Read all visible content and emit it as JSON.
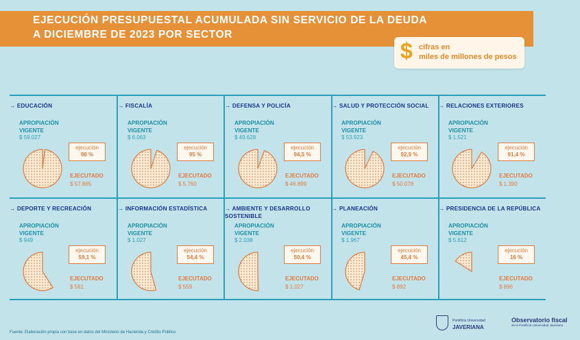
{
  "header": {
    "title_line1": "EJECUCIÓN PRESUPUESTAL ACUMULADA SIN SERVICIO DE LA DEUDA",
    "title_line2": "A DICIEMBRE DE 2023 POR SECTOR",
    "units_symbol": "$",
    "units_line1": "cifras en",
    "units_line2": "miles de millones de pesos"
  },
  "labels": {
    "appropriation_1": "APROPIACIÓN",
    "appropriation_2": "VIGENTE",
    "execution": "ejecución",
    "executed": "EJECUTADO"
  },
  "sectors": [
    {
      "name": "→ EDUCACIÓN",
      "appropriation": "$ 59.027",
      "execution_pct": "98 %",
      "execution_value": 98,
      "executed": "$ 57.865"
    },
    {
      "name": "→ FISCALÍA",
      "appropriation": "$ 6.063",
      "execution_pct": "95 %",
      "execution_value": 95,
      "executed": "$ 5.760"
    },
    {
      "name": "→ DEFENSA Y POLICÍA",
      "appropriation": "$ 49.628",
      "execution_pct": "94,5 %",
      "execution_value": 94.5,
      "executed": "$ 46.899"
    },
    {
      "name": "→ SALUD Y PROTECCIÓN SOCIAL",
      "appropriation": "$ 53.923",
      "execution_pct": "92,9 %",
      "execution_value": 92.9,
      "executed": "$ 50.078"
    },
    {
      "name": "→ RELACIONES EXTERIORES",
      "appropriation": "$ 1.521",
      "execution_pct": "91,4 %",
      "execution_value": 91.4,
      "executed": "$ 1.390"
    },
    {
      "name": "→ DEPORTE Y RECREACIÓN",
      "appropriation": "$ 949",
      "execution_pct": "59,1 %",
      "execution_value": 59.1,
      "executed": "$ 561"
    },
    {
      "name": "→ INFORMACIÓN ESTADÍSTICA",
      "appropriation": "$ 1.027",
      "execution_pct": "54,4 %",
      "execution_value": 54.4,
      "executed": "$ 559"
    },
    {
      "name": "→ AMBIENTE Y DESARROLLO SOSTENIBLE",
      "appropriation": "$ 2.038",
      "execution_pct": "50,4 %",
      "execution_value": 50.4,
      "executed": "$ 1.027"
    },
    {
      "name": "→ PLANEACIÓN",
      "appropriation": "$ 1.967",
      "execution_pct": "45,4 %",
      "execution_value": 45.4,
      "executed": "$ 892"
    },
    {
      "name": "→ PRESIDENCIA DE LA REPÚBLICA",
      "appropriation": "$ 5.612",
      "execution_pct": "16 %",
      "execution_value": 16,
      "executed": "$ 896"
    }
  ],
  "footer": {
    "source": "Fuente: Elaboración propia con base en datos del Ministerio de Hacienda y Crédito Público",
    "logo1_line1": "Pontificia Universidad",
    "logo1_line2": "JAVERIANA",
    "logo2_title": "Observatorio fiscal",
    "logo2_sub": "de la Pontificia Universidad Javeriana"
  },
  "colors": {
    "banner": "#e69137",
    "navy": "#1a3590",
    "teal": "#1e8fa6",
    "orange": "#e07a3e",
    "pie_fill": "#fde9cf",
    "background": "#c3e3ea"
  }
}
